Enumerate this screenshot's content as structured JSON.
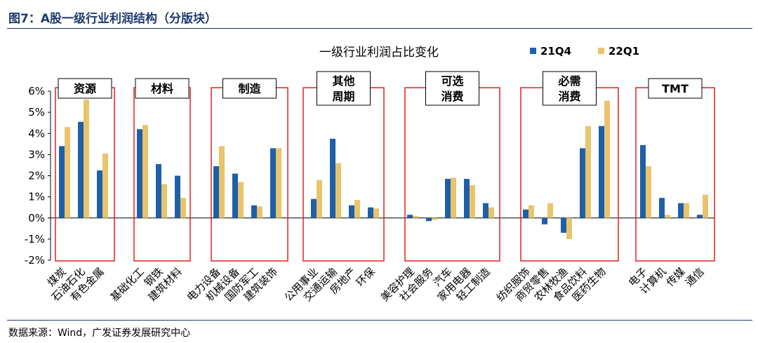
{
  "header": {
    "title": "图7：A股一级行业利润结构（分版块）"
  },
  "footer": {
    "source": "数据来源：Wind，广发证券发展研究中心"
  },
  "colors": {
    "series1": "#1f5fa8",
    "series2": "#e8c56c",
    "frame": "#e02020",
    "rule": "#1f3b6e"
  },
  "chart_data": {
    "type": "bar",
    "title": "一级行业利润占比变化",
    "ylabel": "",
    "xlabel": "",
    "ylim": [
      -2,
      6
    ],
    "yticks": [
      6,
      5,
      4,
      3,
      2,
      1,
      0,
      -1,
      -2
    ],
    "ytick_labels": [
      "6%",
      "5%",
      "4%",
      "3%",
      "2%",
      "1%",
      "0%",
      "-1%",
      "-2%"
    ],
    "legend": [
      "21Q4",
      "22Q1"
    ],
    "legend_position": "top-right",
    "groups": [
      {
        "name": "资源",
        "categories": [
          "煤炭",
          "石油石化",
          "有色金属"
        ],
        "s1": [
          3.4,
          4.55,
          2.25
        ],
        "s2": [
          4.3,
          5.6,
          3.05
        ]
      },
      {
        "name": "材料",
        "categories": [
          "基础化工",
          "钢铁",
          "建筑材料"
        ],
        "s1": [
          4.2,
          2.55,
          2.0
        ],
        "s2": [
          4.4,
          1.6,
          0.95
        ]
      },
      {
        "name": "制造",
        "categories": [
          "电力设备",
          "机械设备",
          "国防军工",
          "建筑装饰"
        ],
        "s1": [
          2.45,
          2.1,
          0.6,
          3.3
        ],
        "s2": [
          3.4,
          1.7,
          0.55,
          3.3
        ]
      },
      {
        "name": "其他周期",
        "label_lines": [
          "其他",
          "周期"
        ],
        "categories": [
          "公用事业",
          "交通运输",
          "房地产",
          "环保"
        ],
        "s1": [
          0.9,
          3.75,
          0.6,
          0.5
        ],
        "s2": [
          1.8,
          2.6,
          0.85,
          0.45
        ]
      },
      {
        "name": "可选消费",
        "label_lines": [
          "可选",
          "消费"
        ],
        "categories": [
          "美容护理",
          "社会服务",
          "汽车",
          "家用电器",
          "轻工制造"
        ],
        "s1": [
          0.15,
          -0.15,
          1.85,
          1.85,
          0.7
        ],
        "s2": [
          0.1,
          -0.1,
          1.9,
          1.55,
          0.5
        ]
      },
      {
        "name": "必需消费",
        "label_lines": [
          "必需",
          "消费"
        ],
        "categories": [
          "纺织服饰",
          "商贸零售",
          "农林牧渔",
          "食品饮料",
          "医药生物"
        ],
        "s1": [
          0.4,
          -0.3,
          -0.7,
          3.3,
          4.35
        ],
        "s2": [
          0.6,
          0.7,
          -1.0,
          4.35,
          5.55
        ]
      },
      {
        "name": "TMT",
        "label_lines": [
          "TMT"
        ],
        "categories": [
          "电子",
          "计算机",
          "传媒",
          "通信"
        ],
        "s1": [
          3.45,
          0.95,
          0.7,
          0.15
        ],
        "s2": [
          2.45,
          0.15,
          0.7,
          1.1
        ]
      }
    ]
  }
}
